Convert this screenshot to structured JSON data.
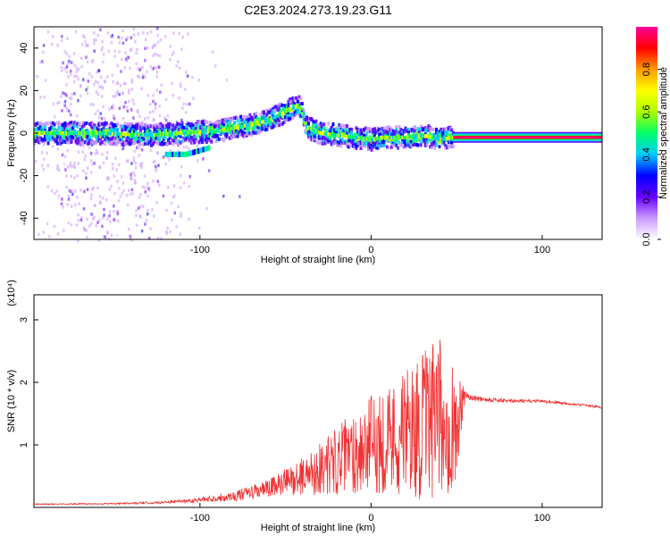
{
  "title": "C2E3.2024.273.19.23.G11",
  "chart_data": [
    {
      "type": "heatmap",
      "xlabel": "Height of straight line (km)",
      "ylabel": "Frequency (Hz)",
      "xlim": [
        -197,
        135
      ],
      "ylim": [
        -50,
        50
      ],
      "xticks": [
        -100,
        0,
        100
      ],
      "yticks": [
        -40,
        -20,
        0,
        20,
        40
      ],
      "colorbar": {
        "label": "Normalized spectral amplitude",
        "range": [
          0,
          1
        ],
        "ticks": [
          "0.0",
          "0.2",
          "0.4",
          "0.6",
          "0.8"
        ],
        "colors": [
          "#ffffff",
          "#cc99ff",
          "#6600ff",
          "#0000ff",
          "#00ccff",
          "#00ff66",
          "#aaff00",
          "#ffff00",
          "#ff9900",
          "#ff0000",
          "#ff0099"
        ]
      },
      "ridge": {
        "x": [
          -197,
          -160,
          -130,
          -110,
          -90,
          -70,
          -60,
          -50,
          -42,
          -38,
          -30,
          -20,
          -10,
          0,
          10,
          20,
          30,
          40,
          48,
          135
        ],
        "y": [
          0,
          0,
          -1,
          0,
          1,
          4,
          6,
          10,
          13,
          3,
          0,
          -1,
          -2,
          -3,
          -2,
          -2,
          -1,
          -3,
          -2,
          -2
        ]
      },
      "secondary_ridge": {
        "x": [
          -120,
          -108,
          -95
        ],
        "y": [
          -10,
          -10,
          -7
        ]
      }
    },
    {
      "type": "line",
      "xlabel": "Height of straight line (km)",
      "ylabel": "SNR (10 * v/v)",
      "multiplier": "(x10⁴)",
      "xlim": [
        -197,
        135
      ],
      "ylim": [
        0,
        3.4
      ],
      "xticks": [
        -100,
        0,
        100
      ],
      "yticks": [
        1,
        2,
        3
      ],
      "color": "#ee3333",
      "envelope": {
        "x": [
          -197,
          -150,
          -120,
          -100,
          -80,
          -60,
          -40,
          -20,
          0,
          20,
          30,
          40,
          50,
          55,
          60,
          80,
          100,
          120,
          135
        ],
        "mean": [
          0.05,
          0.06,
          0.08,
          0.12,
          0.18,
          0.3,
          0.5,
          0.75,
          1.0,
          1.2,
          1.3,
          1.4,
          1.3,
          1.8,
          1.75,
          1.7,
          1.7,
          1.65,
          1.6
        ],
        "spread": [
          0.01,
          0.01,
          0.02,
          0.04,
          0.08,
          0.15,
          0.3,
          0.55,
          0.8,
          1.0,
          1.2,
          1.3,
          1.0,
          0.05,
          0.05,
          0.03,
          0.02,
          0.02,
          0.02
        ]
      }
    }
  ]
}
